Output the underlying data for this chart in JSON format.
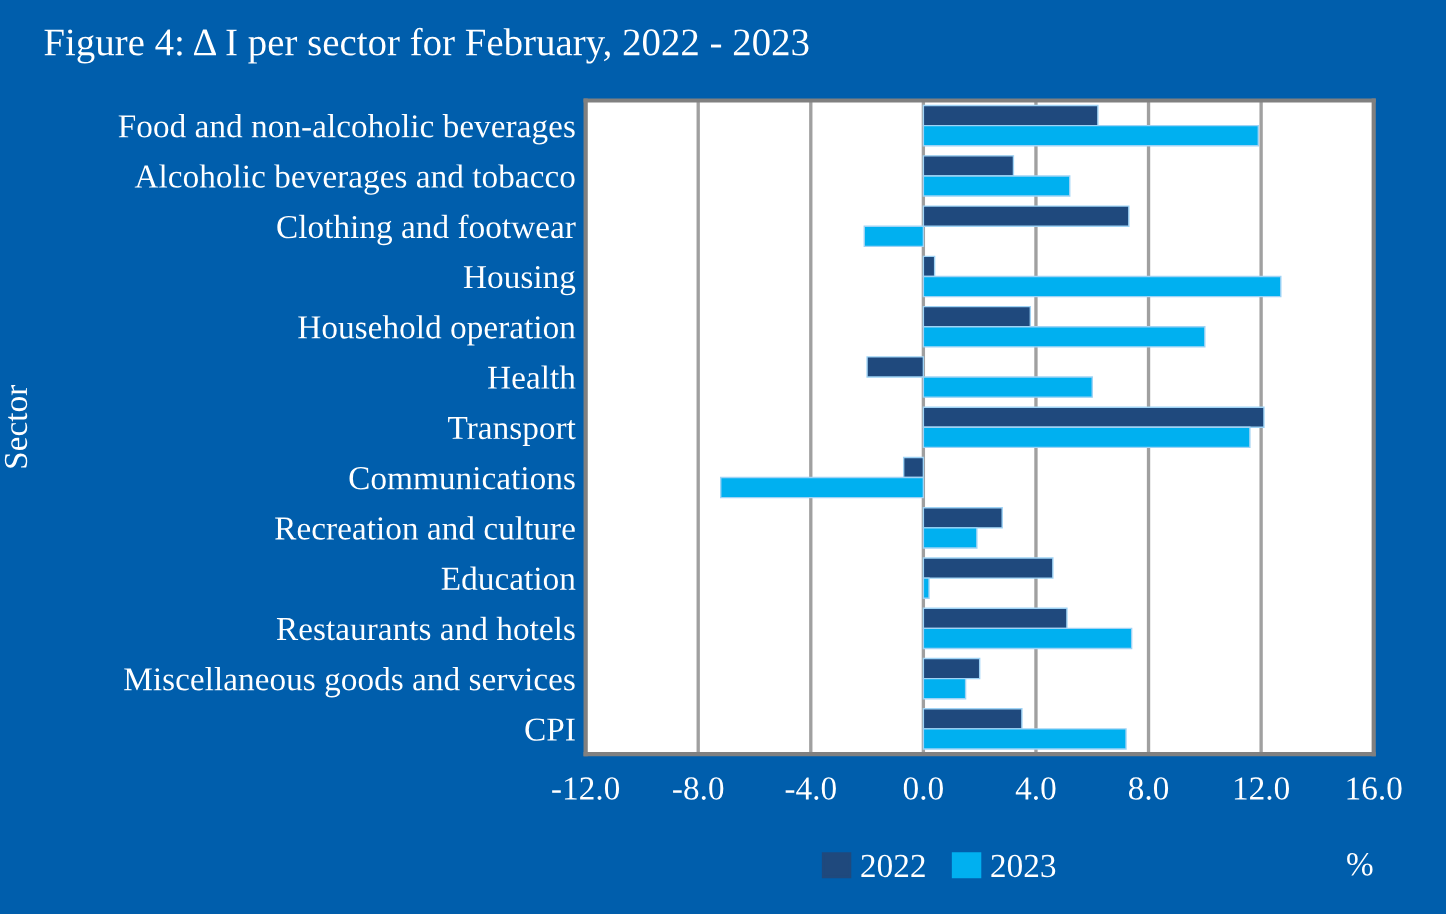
{
  "chart_data": {
    "type": "bar",
    "orientation": "horizontal",
    "title": "Figure 4: Δ I per sector for February, 2022 - 2023",
    "xlabel": "%",
    "ylabel": "Sector",
    "categories": [
      "Food and non-alcoholic beverages",
      "Alcoholic beverages and tobacco",
      "Clothing and footwear",
      "Housing",
      "Household operation",
      "Health",
      "Transport",
      "Communications",
      "Recreation and culture",
      "Education",
      "Restaurants and hotels",
      "Miscellaneous goods and services",
      "CPI"
    ],
    "series": [
      {
        "name": "2022",
        "color": "#1f497d",
        "values": [
          6.2,
          3.2,
          7.3,
          0.4,
          3.8,
          -2.0,
          12.1,
          -0.7,
          2.8,
          4.6,
          5.1,
          2.0,
          3.5
        ]
      },
      {
        "name": "2023",
        "color": "#00b0f0",
        "values": [
          11.9,
          5.2,
          -2.1,
          12.7,
          10.0,
          6.0,
          11.6,
          -7.2,
          1.9,
          0.2,
          7.4,
          1.5,
          7.2
        ]
      }
    ],
    "xlim": [
      -12,
      16
    ],
    "xticks": [
      {
        "value": -12,
        "label": "-12.0"
      },
      {
        "value": -8,
        "label": "-8.0"
      },
      {
        "value": -4,
        "label": "-4.0"
      },
      {
        "value": 0,
        "label": "0.0"
      },
      {
        "value": 4,
        "label": "4.0"
      },
      {
        "value": 8,
        "label": "8.0"
      },
      {
        "value": 12,
        "label": "12.0"
      },
      {
        "value": 16,
        "label": "16.0"
      }
    ],
    "grid": "x",
    "legend": "bottom"
  }
}
